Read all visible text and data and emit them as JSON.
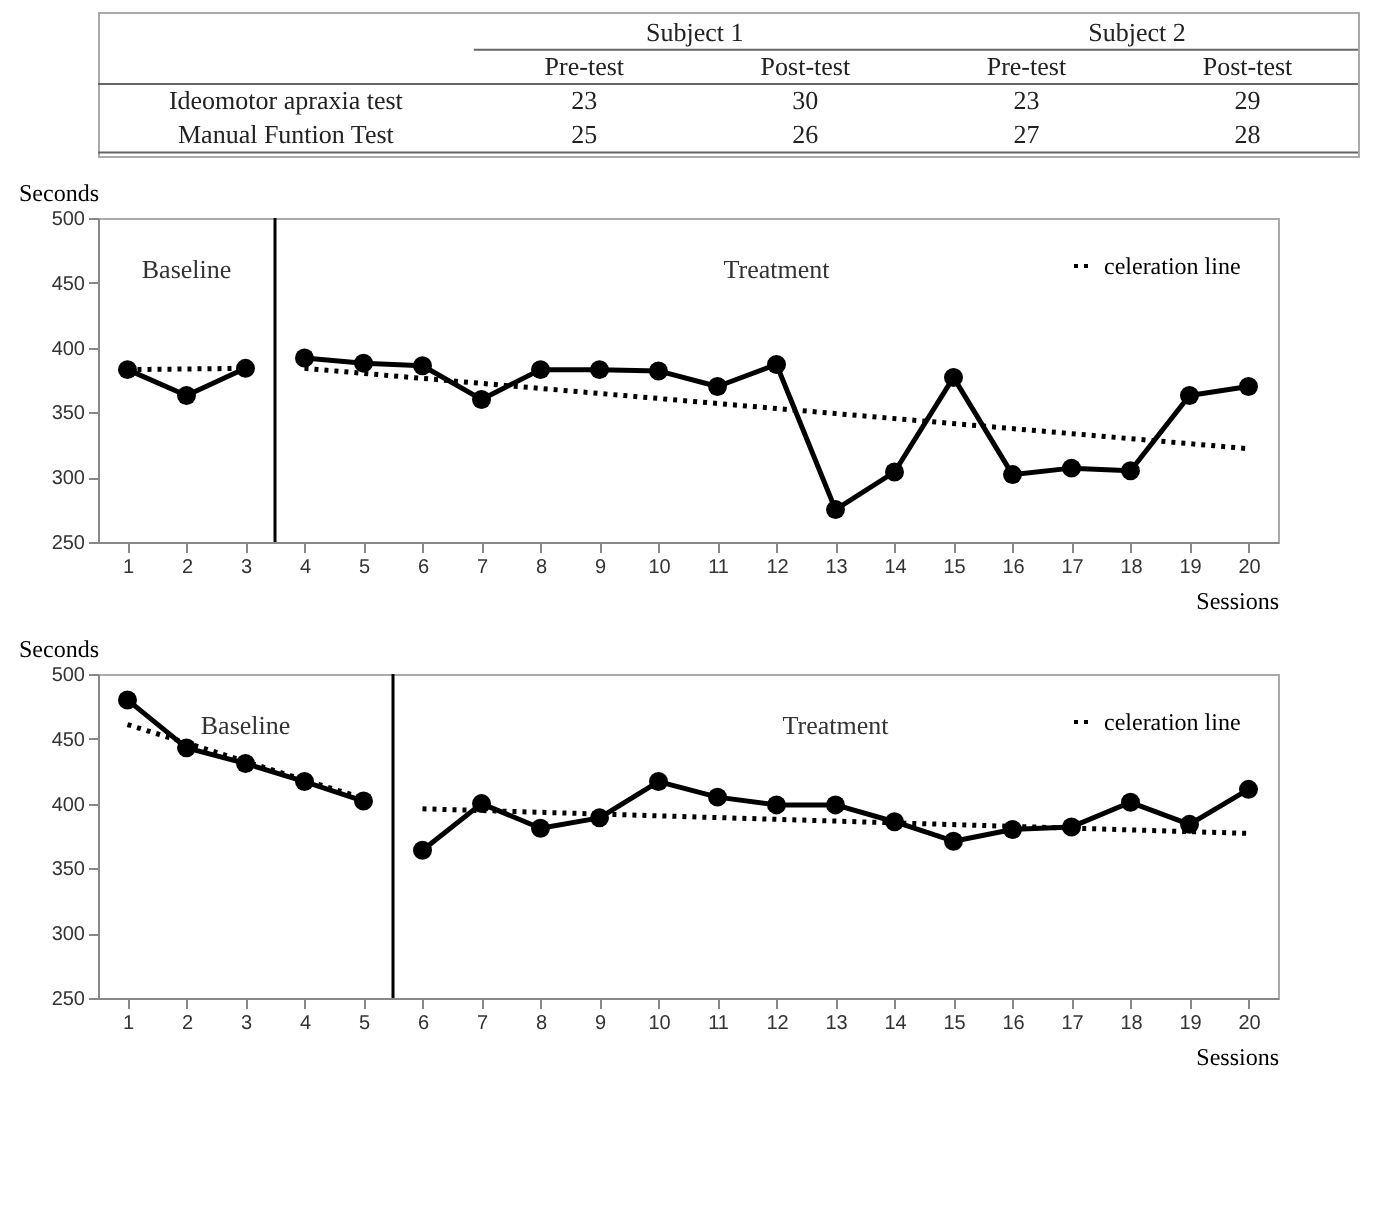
{
  "chart_data": [
    {
      "type": "heatmap",
      "data_labels": true,
      "categories": [
        "Pre-test",
        "Post-test",
        "Pre-test",
        "Post-test"
      ],
      "y_categories": [
        "Ideomotor apraxia test",
        "Manual Funtion Test"
      ],
      "cells": [
        [
          23,
          30,
          23,
          29
        ],
        [
          25,
          26,
          27,
          28
        ]
      ],
      "annotations": [
        "Subject 1",
        "Subject 2"
      ]
    },
    {
      "type": "line",
      "xlabel": "Sessions",
      "ylabel": "Seconds",
      "xlim": [
        0.5,
        20.5
      ],
      "xticks": [
        1,
        2,
        3,
        4,
        5,
        6,
        7,
        8,
        9,
        10,
        11,
        12,
        13,
        14,
        15,
        16,
        17,
        18,
        19,
        20
      ],
      "ylim": [
        250,
        500
      ],
      "yticks": [
        250,
        300,
        350,
        400,
        450,
        500
      ],
      "grid": false,
      "legend": "top right",
      "ref_lines": [
        {
          "axis": "x",
          "value": 3.5,
          "label": null,
          "color": "#000000"
        }
      ],
      "annotations": [
        "Baseline",
        "Treatment"
      ],
      "series": [
        {
          "color": "#000000",
          "marker": "circle",
          "line_style": "solid",
          "x": [
            1,
            2,
            3
          ],
          "values": [
            383,
            363,
            384
          ]
        },
        {
          "color": "#000000",
          "marker": "circle",
          "line_style": "solid",
          "x": [
            4,
            5,
            6,
            7,
            8,
            9,
            10,
            11,
            12,
            13,
            14,
            15,
            16,
            17,
            18,
            19,
            20
          ],
          "values": [
            392,
            388,
            386,
            360,
            383,
            383,
            382,
            370,
            387,
            275,
            304,
            377,
            302,
            307,
            305,
            363,
            370
          ]
        },
        {
          "color": "#000000",
          "marker": "none",
          "line_style": "dotted",
          "x": [
            1,
            3
          ],
          "values": [
            383,
            384
          ]
        },
        {
          "name": "celeration line",
          "color": "#000000",
          "marker": "none",
          "line_style": "dotted",
          "x": [
            4,
            20
          ],
          "values": [
            384,
            322
          ]
        }
      ]
    },
    {
      "type": "line",
      "xlabel": "Sessions",
      "ylabel": "Seconds",
      "xlim": [
        0.5,
        20.5
      ],
      "xticks": [
        1,
        2,
        3,
        4,
        5,
        6,
        7,
        8,
        9,
        10,
        11,
        12,
        13,
        14,
        15,
        16,
        17,
        18,
        19,
        20
      ],
      "ylim": [
        250,
        500
      ],
      "yticks": [
        250,
        300,
        350,
        400,
        450,
        500
      ],
      "grid": false,
      "legend": "top right",
      "ref_lines": [
        {
          "axis": "x",
          "value": 5.5,
          "label": null,
          "color": "#000000"
        }
      ],
      "annotations": [
        "Baseline",
        "Treatment"
      ],
      "series": [
        {
          "color": "#000000",
          "marker": "circle",
          "line_style": "solid",
          "x": [
            1,
            2,
            3,
            4,
            5
          ],
          "values": [
            480,
            443,
            431,
            417,
            402
          ]
        },
        {
          "color": "#000000",
          "marker": "circle",
          "line_style": "solid",
          "x": [
            6,
            7,
            8,
            9,
            10,
            11,
            12,
            13,
            14,
            15,
            16,
            17,
            18,
            19,
            20
          ],
          "values": [
            364,
            400,
            381,
            389,
            417,
            405,
            399,
            399,
            386,
            371,
            380,
            382,
            401,
            384,
            411
          ]
        },
        {
          "color": "#000000",
          "marker": "none",
          "line_style": "dotted",
          "x": [
            1,
            5
          ],
          "values": [
            461,
            404
          ]
        },
        {
          "name": "celeration line",
          "color": "#000000",
          "marker": "none",
          "line_style": "dotted",
          "x": [
            6,
            20
          ],
          "values": [
            396,
            377
          ]
        }
      ]
    }
  ]
}
